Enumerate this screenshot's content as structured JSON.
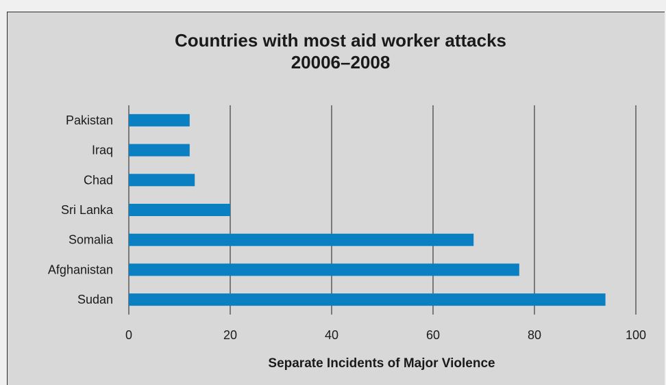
{
  "chart_data": {
    "type": "bar",
    "orientation": "horizontal",
    "title": "Countries with most aid worker attacks",
    "subtitle": "20006–2008",
    "xlabel": "Separate Incidents of Major Violence",
    "ylabel": "",
    "categories": [
      "Pakistan",
      "Iraq",
      "Chad",
      "Sri Lanka",
      "Somalia",
      "Afghanistan",
      "Sudan"
    ],
    "values": [
      12,
      12,
      13,
      20,
      68,
      77,
      94
    ],
    "xlim": [
      0,
      100
    ],
    "xticks": [
      0,
      20,
      40,
      60,
      80,
      100
    ],
    "grid": true,
    "bar_color": "#0a7fc2"
  }
}
